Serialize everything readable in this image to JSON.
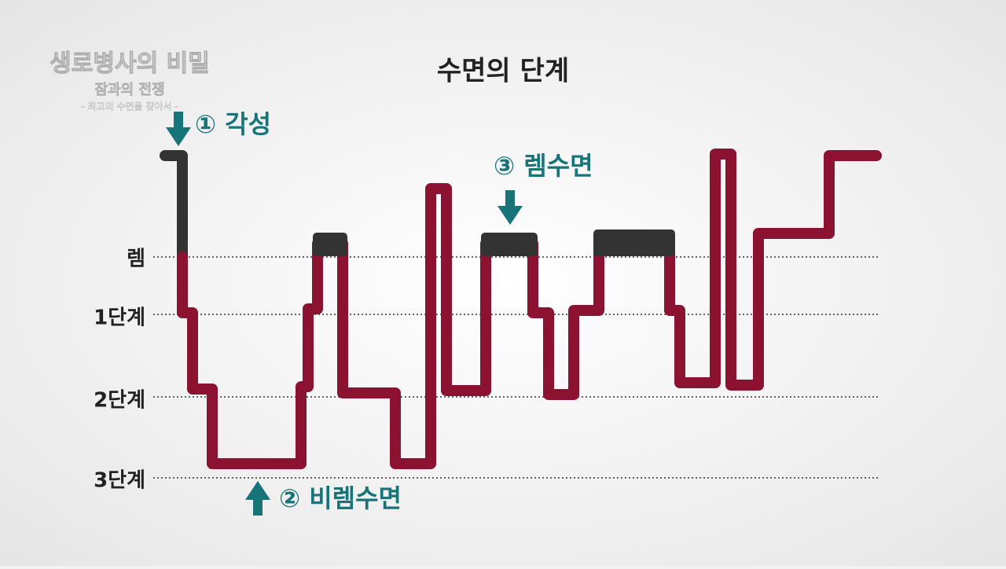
{
  "logo": {
    "title": "생로병사의 비밀",
    "subtitle": "잠과의 전쟁",
    "tagline": "- 최고의 수면을 찾아서 -"
  },
  "title": "수면의 단계",
  "levels": [
    "렘",
    "1단계",
    "2단계",
    "3단계"
  ],
  "annotations": [
    "① 각성",
    "② 비렘수면",
    "③ 렘수면"
  ]
}
